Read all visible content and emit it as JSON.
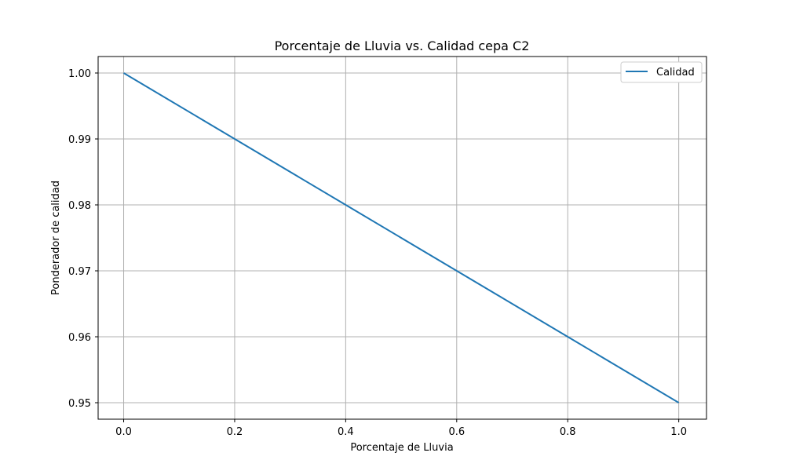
{
  "chart_data": {
    "type": "line",
    "title": "Porcentaje de Lluvia vs. Calidad cepa C2",
    "xlabel": "Porcentaje de Lluvia",
    "ylabel": "Ponderador de calidad",
    "xlim": [
      -0.046,
      1.05
    ],
    "ylim": [
      0.9475,
      1.0025
    ],
    "xticks": [
      0.0,
      0.2,
      0.4,
      0.6,
      0.8,
      1.0
    ],
    "xtick_labels": [
      "0.0",
      "0.2",
      "0.4",
      "0.6",
      "0.8",
      "1.0"
    ],
    "yticks": [
      0.95,
      0.96,
      0.97,
      0.98,
      0.99,
      1.0
    ],
    "ytick_labels": [
      "0.95",
      "0.96",
      "0.97",
      "0.98",
      "0.99",
      "1.00"
    ],
    "grid": true,
    "legend_position": "top-right",
    "series": [
      {
        "name": "Calidad",
        "color": "#1f77b4",
        "x": [
          0.0,
          0.2,
          0.4,
          0.6,
          0.8,
          1.0
        ],
        "y": [
          1.0,
          0.99,
          0.98,
          0.97,
          0.96,
          0.95
        ]
      }
    ]
  }
}
